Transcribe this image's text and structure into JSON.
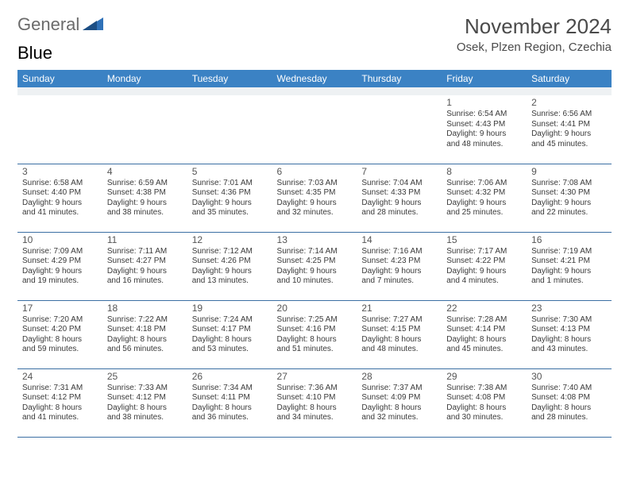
{
  "logo": {
    "word1": "General",
    "word2": "Blue"
  },
  "title": "November 2024",
  "location": "Osek, Plzen Region, Czechia",
  "header_color": "#3b82c4",
  "divider_color": "#3b6fa3",
  "day_headers": [
    "Sunday",
    "Monday",
    "Tuesday",
    "Wednesday",
    "Thursday",
    "Friday",
    "Saturday"
  ],
  "weeks": [
    [
      null,
      null,
      null,
      null,
      null,
      {
        "n": "1",
        "sr": "6:54 AM",
        "ss": "4:43 PM",
        "dh": "9",
        "dm": "48"
      },
      {
        "n": "2",
        "sr": "6:56 AM",
        "ss": "4:41 PM",
        "dh": "9",
        "dm": "45"
      }
    ],
    [
      {
        "n": "3",
        "sr": "6:58 AM",
        "ss": "4:40 PM",
        "dh": "9",
        "dm": "41"
      },
      {
        "n": "4",
        "sr": "6:59 AM",
        "ss": "4:38 PM",
        "dh": "9",
        "dm": "38"
      },
      {
        "n": "5",
        "sr": "7:01 AM",
        "ss": "4:36 PM",
        "dh": "9",
        "dm": "35"
      },
      {
        "n": "6",
        "sr": "7:03 AM",
        "ss": "4:35 PM",
        "dh": "9",
        "dm": "32"
      },
      {
        "n": "7",
        "sr": "7:04 AM",
        "ss": "4:33 PM",
        "dh": "9",
        "dm": "28"
      },
      {
        "n": "8",
        "sr": "7:06 AM",
        "ss": "4:32 PM",
        "dh": "9",
        "dm": "25"
      },
      {
        "n": "9",
        "sr": "7:08 AM",
        "ss": "4:30 PM",
        "dh": "9",
        "dm": "22"
      }
    ],
    [
      {
        "n": "10",
        "sr": "7:09 AM",
        "ss": "4:29 PM",
        "dh": "9",
        "dm": "19"
      },
      {
        "n": "11",
        "sr": "7:11 AM",
        "ss": "4:27 PM",
        "dh": "9",
        "dm": "16"
      },
      {
        "n": "12",
        "sr": "7:12 AM",
        "ss": "4:26 PM",
        "dh": "9",
        "dm": "13"
      },
      {
        "n": "13",
        "sr": "7:14 AM",
        "ss": "4:25 PM",
        "dh": "9",
        "dm": "10"
      },
      {
        "n": "14",
        "sr": "7:16 AM",
        "ss": "4:23 PM",
        "dh": "9",
        "dm": "7"
      },
      {
        "n": "15",
        "sr": "7:17 AM",
        "ss": "4:22 PM",
        "dh": "9",
        "dm": "4"
      },
      {
        "n": "16",
        "sr": "7:19 AM",
        "ss": "4:21 PM",
        "dh": "9",
        "dm": "1"
      }
    ],
    [
      {
        "n": "17",
        "sr": "7:20 AM",
        "ss": "4:20 PM",
        "dh": "8",
        "dm": "59"
      },
      {
        "n": "18",
        "sr": "7:22 AM",
        "ss": "4:18 PM",
        "dh": "8",
        "dm": "56"
      },
      {
        "n": "19",
        "sr": "7:24 AM",
        "ss": "4:17 PM",
        "dh": "8",
        "dm": "53"
      },
      {
        "n": "20",
        "sr": "7:25 AM",
        "ss": "4:16 PM",
        "dh": "8",
        "dm": "51"
      },
      {
        "n": "21",
        "sr": "7:27 AM",
        "ss": "4:15 PM",
        "dh": "8",
        "dm": "48"
      },
      {
        "n": "22",
        "sr": "7:28 AM",
        "ss": "4:14 PM",
        "dh": "8",
        "dm": "45"
      },
      {
        "n": "23",
        "sr": "7:30 AM",
        "ss": "4:13 PM",
        "dh": "8",
        "dm": "43"
      }
    ],
    [
      {
        "n": "24",
        "sr": "7:31 AM",
        "ss": "4:12 PM",
        "dh": "8",
        "dm": "41"
      },
      {
        "n": "25",
        "sr": "7:33 AM",
        "ss": "4:12 PM",
        "dh": "8",
        "dm": "38"
      },
      {
        "n": "26",
        "sr": "7:34 AM",
        "ss": "4:11 PM",
        "dh": "8",
        "dm": "36"
      },
      {
        "n": "27",
        "sr": "7:36 AM",
        "ss": "4:10 PM",
        "dh": "8",
        "dm": "34"
      },
      {
        "n": "28",
        "sr": "7:37 AM",
        "ss": "4:09 PM",
        "dh": "8",
        "dm": "32"
      },
      {
        "n": "29",
        "sr": "7:38 AM",
        "ss": "4:08 PM",
        "dh": "8",
        "dm": "30"
      },
      {
        "n": "30",
        "sr": "7:40 AM",
        "ss": "4:08 PM",
        "dh": "8",
        "dm": "28"
      }
    ]
  ],
  "labels": {
    "sunrise": "Sunrise:",
    "sunset": "Sunset:",
    "daylight": "Daylight:",
    "hours": "hours",
    "and": "and",
    "minutes": "minutes."
  }
}
